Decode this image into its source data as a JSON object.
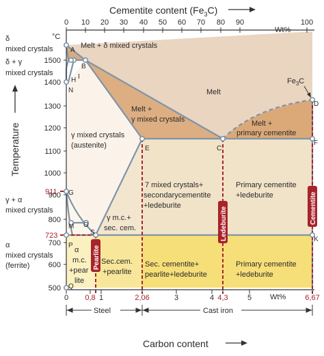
{
  "top_axis": {
    "title": "Cementite content (Fe",
    "title_sub": "3",
    "title_end": "C)",
    "ticks": [
      "0",
      "10",
      "20",
      "30",
      "40",
      "50",
      "60",
      "70",
      "80",
      "90",
      "100"
    ],
    "unit": "Wt%"
  },
  "left_axis": {
    "title": "Temperature",
    "unit": "°C",
    "ticks": [
      "1500",
      "1400",
      "1300",
      "1200",
      "1100",
      "1000",
      "900",
      "800",
      "700",
      "600",
      "500"
    ],
    "marked_values": [
      "911",
      "723"
    ]
  },
  "bottom_axis": {
    "ticks": [
      "0",
      "0,8",
      "1",
      "2,06",
      "3",
      "4",
      "4,3",
      "5",
      "6,67"
    ],
    "unit": "Wt%",
    "title": "Carbon content",
    "ranges": [
      "Steel",
      "Cast iron"
    ]
  },
  "left_phase_labels": {
    "delta_a": "δ",
    "delta_b": "mixed crystals",
    "delta_gamma_a": "δ + γ",
    "delta_gamma_b": "mixed crystals",
    "gamma_alpha_a": "γ + α",
    "gamma_alpha_b": "mixed crystals",
    "alpha_a": "α",
    "alpha_b": "mixed crystals",
    "alpha_c": "(ferrite)"
  },
  "points": [
    "A",
    "B",
    "H",
    "I",
    "N",
    "E",
    "C",
    "D",
    "F",
    "G",
    "M",
    "O",
    "S",
    "P",
    "Q",
    "K"
  ],
  "fe3c_label": "Fe",
  "fe3c_sub": "3",
  "fe3c_end": "C",
  "regions": {
    "melt_delta": "Melt + δ mixed crystals",
    "melt": "Melt",
    "melt_gamma_a": "Melt +",
    "melt_gamma_b": "γ mixed crystals",
    "melt_primary_a": "Melt +",
    "melt_primary_b": "primary cementite",
    "gamma_a": "γ mixed crystals",
    "gamma_b": "(austenite)",
    "gamma_sec_a": "7 mixed crystals+",
    "gamma_sec_b": "secondarycementite",
    "gamma_sec_c": "+ledeburite",
    "primary_led_a": "Primary cementite",
    "primary_led_b": "+ledeburite",
    "gamma_mc_a": "γ m.c.+",
    "gamma_mc_b": "sec. cem.",
    "alpha_pearl_a": "α",
    "alpha_pearl_b": "m.c.",
    "alpha_pearl_c": "+pear",
    "alpha_pearl_d": "lite",
    "sec_pearl_a": "Sec.cem.",
    "sec_pearl_b": "+pearlite",
    "sec_pearl_led_a": "Sec. cementite+",
    "sec_pearl_led_b": "pearlite+ledeburite",
    "primary_led2_a": "Primary cementite",
    "primary_led2_b": "+ledeburite"
  },
  "vertical_tags": {
    "pearlite": "Pearlite",
    "ledeburite": "Ledeburite",
    "cementite": "Cementite"
  },
  "colors": {
    "melt": "#e9d3bf",
    "two_phase": "#dcae82",
    "gamma": "#fbf3ea",
    "gamma_sec": "#f1e3c8",
    "pearlite_band": "#f6e07a",
    "pearlite_band_light": "#faf0c0",
    "red": "#a8232a",
    "line": "#7f93a8"
  }
}
